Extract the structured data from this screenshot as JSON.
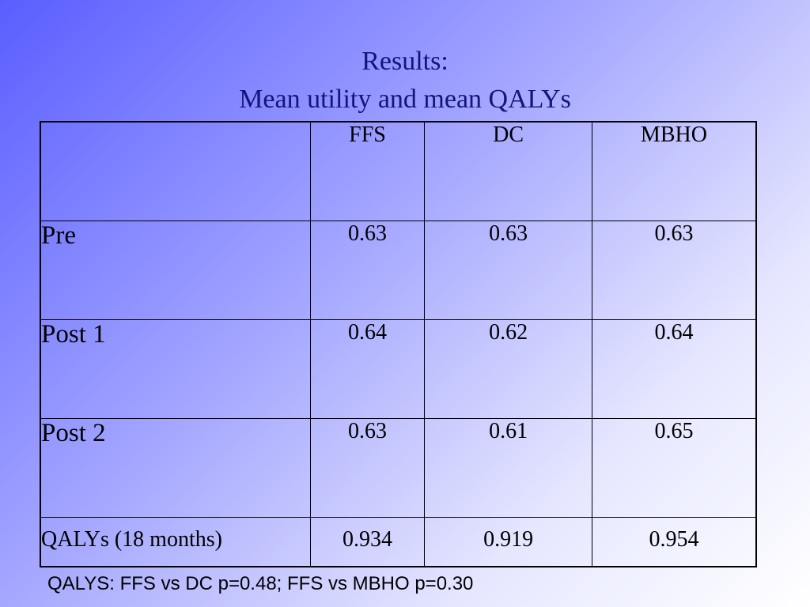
{
  "title": {
    "line1": "Results:",
    "line2": "Mean utility and mean QALYs"
  },
  "table": {
    "corner": "",
    "columns": [
      "FFS",
      "DC",
      "MBHO"
    ],
    "rows": [
      {
        "label": "Pre",
        "values": [
          "0.63",
          "0.63",
          "0.63"
        ]
      },
      {
        "label": "Post 1",
        "values": [
          "0.64",
          "0.62",
          "0.64"
        ]
      },
      {
        "label": "Post 2",
        "values": [
          "0.63",
          "0.61",
          "0.65"
        ]
      },
      {
        "label": "QALYs (18 months)",
        "values": [
          "0.934",
          "0.919",
          "0.954"
        ]
      }
    ]
  },
  "footnote": "QALYS: FFS vs DC p=0.48; FFS vs MBHO p=0.30",
  "colors": {
    "title": "#14147a",
    "background_start": "#5a5eff",
    "background_end": "#ffffff"
  }
}
